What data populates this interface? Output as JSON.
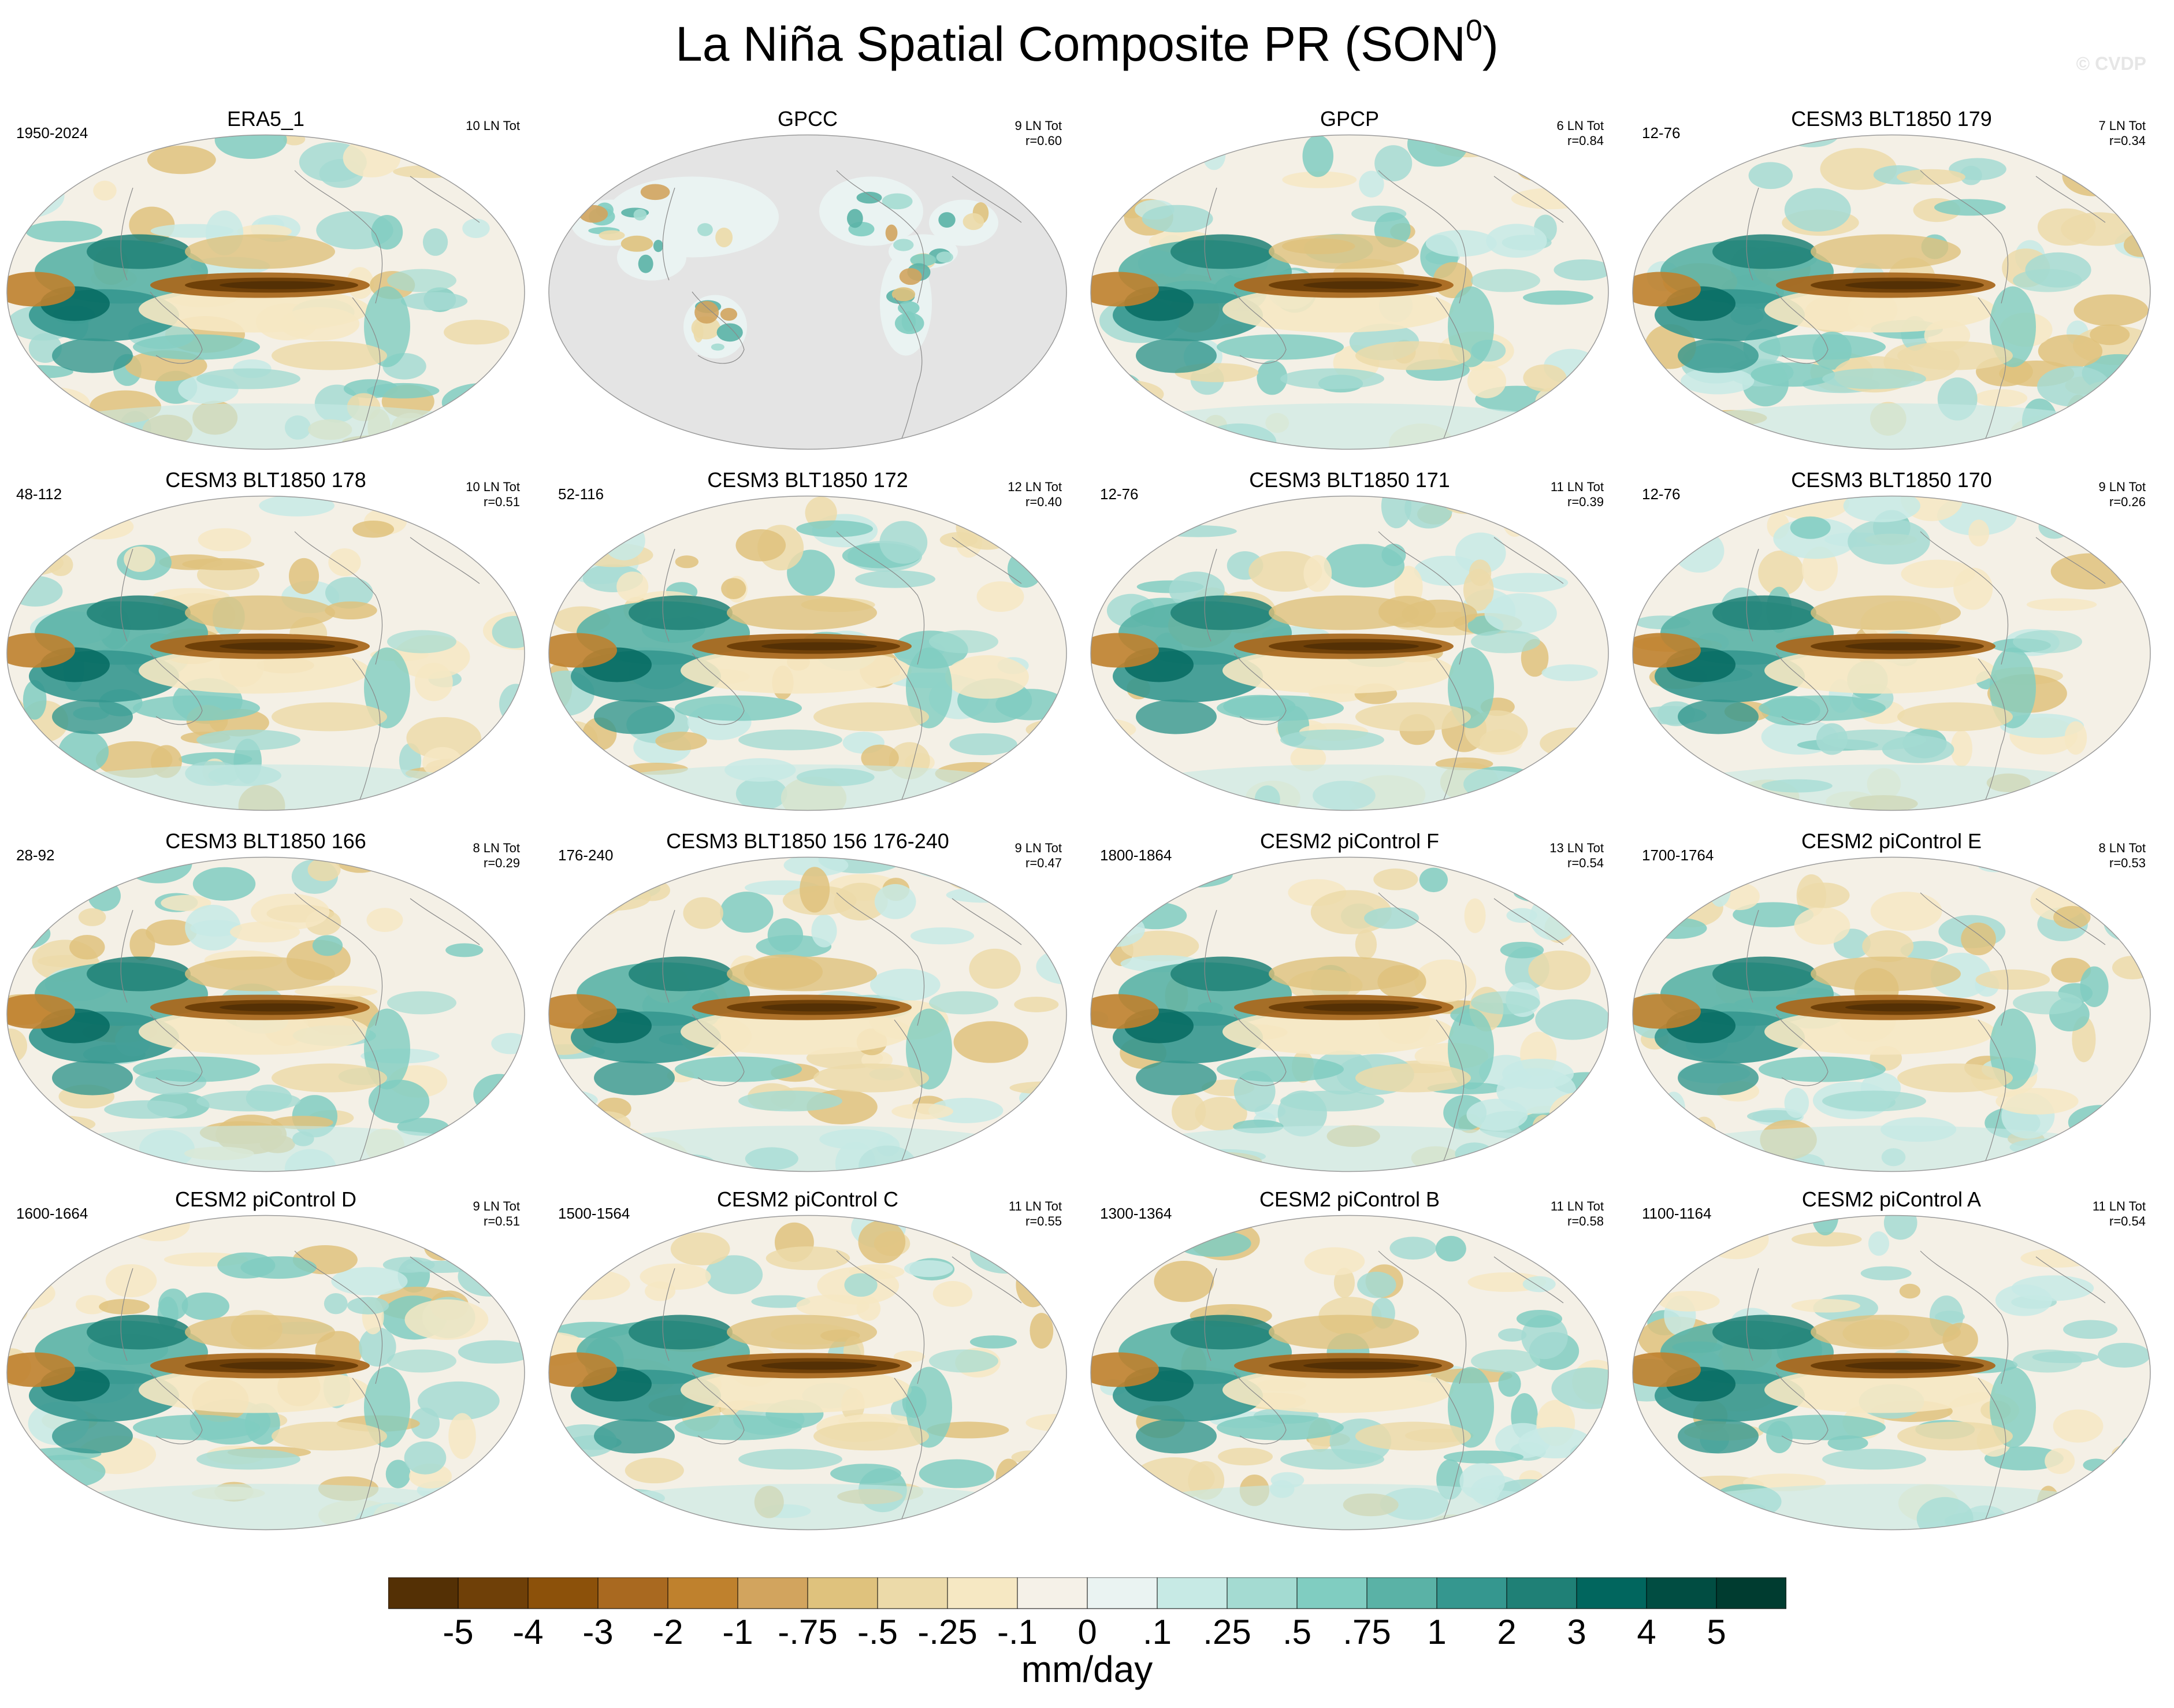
{
  "chart_data": {
    "type": "heatmap",
    "title": "La Niña Spatial Composite PR (SON",
    "title_superscript": "0",
    "title_suffix": ")",
    "watermark": "© CVDP",
    "colorbar": {
      "unit": "mm/day",
      "levels": [
        "-5",
        "-4",
        "-3",
        "-2",
        "-1",
        "-.75",
        "-.5",
        "-.25",
        "-.1",
        "0",
        ".1",
        ".25",
        ".5",
        ".75",
        "1",
        "2",
        "3",
        "4",
        "5"
      ],
      "colors": [
        "#543005",
        "#6f4008",
        "#8c510a",
        "#a96920",
        "#bf812d",
        "#d2a45e",
        "#dfc27d",
        "#ecdaa9",
        "#f6e8c3",
        "#f5f1e8",
        "#eaf3f2",
        "#c7eae5",
        "#a4dbd2",
        "#80cdc1",
        "#5ab2a6",
        "#35978f",
        "#1f8076",
        "#01665e",
        "#014d42",
        "#003c30"
      ]
    },
    "panels": [
      {
        "title": "ERA5_1",
        "years": "1950-2024",
        "count": "10 LN Tot",
        "r": "",
        "land_only": false,
        "seed": 11
      },
      {
        "title": "GPCC",
        "years": "",
        "count": "9 LN Tot",
        "r": "r=0.60",
        "land_only": true,
        "seed": 23
      },
      {
        "title": "GPCP",
        "years": "",
        "count": "6 LN Tot",
        "r": "r=0.84",
        "land_only": false,
        "seed": 37
      },
      {
        "title": "CESM3 BLT1850 179",
        "years": "12-76",
        "count": "7 LN Tot",
        "r": "r=0.34",
        "land_only": false,
        "seed": 41
      },
      {
        "title": "CESM3 BLT1850 178",
        "years": "48-112",
        "count": "10 LN Tot",
        "r": "r=0.51",
        "land_only": false,
        "seed": 53
      },
      {
        "title": "CESM3 BLT1850 172",
        "years": "52-116",
        "count": "12 LN Tot",
        "r": "r=0.40",
        "land_only": false,
        "seed": 67
      },
      {
        "title": "CESM3 BLT1850 171",
        "years": "12-76",
        "count": "11 LN Tot",
        "r": "r=0.39",
        "land_only": false,
        "seed": 71
      },
      {
        "title": "CESM3 BLT1850 170",
        "years": "12-76",
        "count": "9 LN Tot",
        "r": "r=0.26",
        "land_only": false,
        "seed": 83
      },
      {
        "title": "CESM3 BLT1850 166",
        "years": "28-92",
        "count": "8 LN Tot",
        "r": "r=0.29",
        "land_only": false,
        "seed": 97
      },
      {
        "title": "CESM3 BLT1850 156 176-240",
        "years": "176-240",
        "count": "9 LN Tot",
        "r": "r=0.47",
        "land_only": false,
        "seed": 101
      },
      {
        "title": "CESM2 piControl F",
        "years": "1800-1864",
        "count": "13 LN Tot",
        "r": "r=0.54",
        "land_only": false,
        "seed": 113
      },
      {
        "title": "CESM2 piControl E",
        "years": "1700-1764",
        "count": "8 LN Tot",
        "r": "r=0.53",
        "land_only": false,
        "seed": 127
      },
      {
        "title": "CESM2 piControl D",
        "years": "1600-1664",
        "count": "9 LN Tot",
        "r": "r=0.51",
        "land_only": false,
        "seed": 131
      },
      {
        "title": "CESM2 piControl C",
        "years": "1500-1564",
        "count": "11 LN Tot",
        "r": "r=0.55",
        "land_only": false,
        "seed": 139
      },
      {
        "title": "CESM2 piControl B",
        "years": "1300-1364",
        "count": "11 LN Tot",
        "r": "r=0.58",
        "land_only": false,
        "seed": 149
      },
      {
        "title": "CESM2 piControl A",
        "years": "1100-1164",
        "count": "11 LN Tot",
        "r": "r=0.54",
        "land_only": false,
        "seed": 157
      }
    ]
  }
}
